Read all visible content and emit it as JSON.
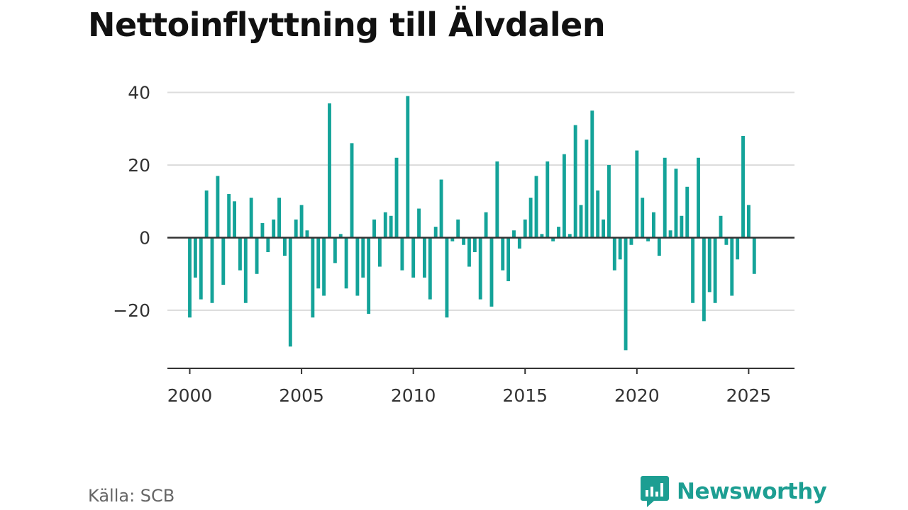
{
  "title": "Nettoinflyttning till Älvdalen",
  "source": "Källa: SCB",
  "brand": {
    "name": "Newsworthy",
    "icon": "newsworthy-logo-icon",
    "color": "#1d9e92"
  },
  "colors": {
    "bar": "#14a399",
    "grid": "#dddddd",
    "baseline": "#333333"
  },
  "chart_data": {
    "type": "bar",
    "title": "Nettoinflyttning till Älvdalen",
    "xlabel": "",
    "ylabel": "",
    "x_ticks": [
      2000,
      2005,
      2010,
      2015,
      2020,
      2025
    ],
    "y_ticks": [
      40,
      20,
      0,
      -20
    ],
    "y_tick_labels": [
      "40",
      "20",
      "0",
      "−20"
    ],
    "ylim": [
      -36,
      44
    ],
    "xlim": [
      1999.0,
      2027.05
    ],
    "grid": true,
    "legend": "none",
    "series": [
      {
        "start_year": 2000,
        "periods_per_year": 4,
        "values": [
          -22,
          -11,
          -17,
          13,
          -18,
          17,
          -13,
          12,
          10,
          -9,
          -18,
          11,
          -10,
          4,
          -4,
          5,
          11,
          -5,
          -30,
          5,
          9,
          2,
          -22,
          -14,
          -16,
          37,
          -7,
          1,
          -14,
          26,
          -16,
          -11,
          -21,
          5,
          -8,
          7,
          6,
          22,
          -9,
          39,
          -11,
          8,
          -11,
          -17,
          3,
          16,
          -22,
          -1,
          5,
          -2,
          -8,
          -4,
          -17,
          7,
          -19,
          21,
          -9,
          -12,
          2,
          -3,
          5,
          11,
          17,
          1,
          21,
          -1,
          3,
          23,
          1,
          31,
          9,
          27,
          35,
          13,
          5,
          20,
          -9,
          -6,
          -31,
          -2,
          24,
          11,
          -1,
          7,
          -5,
          22,
          2,
          19,
          6,
          14,
          -18,
          22,
          -23,
          -15,
          -18,
          6,
          -2,
          -16,
          -6,
          28,
          9,
          -10
        ]
      }
    ]
  }
}
